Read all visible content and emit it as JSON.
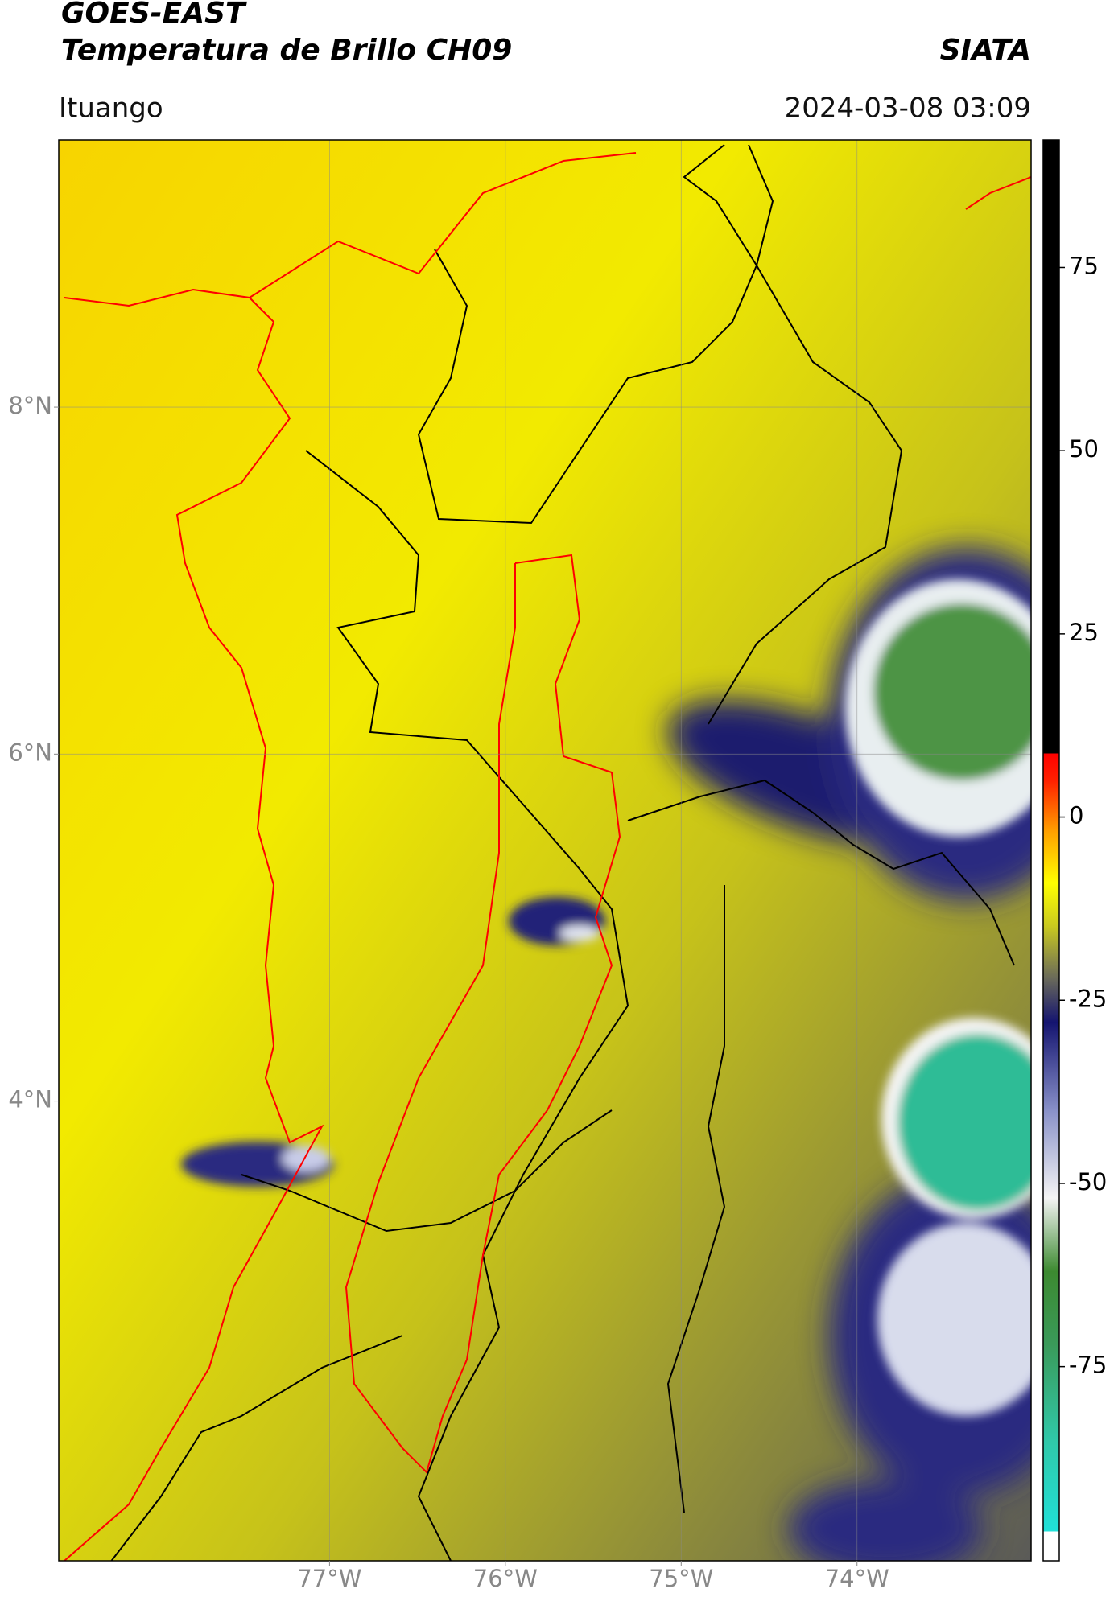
{
  "chart_data": {
    "type": "raster-map",
    "title": "GOES-EAST",
    "subtitle": "Temperatura de Brillo CH09",
    "source": "SIATA",
    "location": "Ituango",
    "datetime": "2024-03-08 03:09",
    "xlim": [
      -78.54,
      -73.01
    ],
    "xticks": [
      {
        "value": -77,
        "label": "77°W"
      },
      {
        "value": -76,
        "label": "76°W"
      },
      {
        "value": -75,
        "label": "75°W"
      },
      {
        "value": -74,
        "label": "74°W"
      }
    ],
    "ylim": [
      1.35,
      9.54
    ],
    "yticks": [
      {
        "value": 8,
        "label": "8°N"
      },
      {
        "value": 6,
        "label": "6°N"
      },
      {
        "value": 4,
        "label": "4°N"
      }
    ],
    "grid": true,
    "colorbar": {
      "lim": [
        -101.5,
        92.4
      ],
      "ticks": [
        75,
        50,
        25,
        0,
        -25,
        -50,
        -75
      ],
      "colormap": [
        {
          "value": -101.5,
          "color": "#ffffff"
        },
        {
          "value": -97.5,
          "color": "#ffffff"
        },
        {
          "value": -97.5,
          "color": "#20e0d8"
        },
        {
          "value": -85,
          "color": "#30c8a8"
        },
        {
          "value": -72,
          "color": "#3a9a5a"
        },
        {
          "value": -62,
          "color": "#3c8a30"
        },
        {
          "value": -52,
          "color": "#f4f4f4"
        },
        {
          "value": -40,
          "color": "#8890c8"
        },
        {
          "value": -28,
          "color": "#141470"
        },
        {
          "value": -22,
          "color": "#6a6a5a"
        },
        {
          "value": -15,
          "color": "#c8c820"
        },
        {
          "value": -9,
          "color": "#ffff00"
        },
        {
          "value": -2,
          "color": "#ffa000"
        },
        {
          "value": 5,
          "color": "#ff2000"
        },
        {
          "value": 8.7,
          "color": "#ff0000"
        },
        {
          "value": 8.7,
          "color": "#000000"
        },
        {
          "value": 92.4,
          "color": "#000000"
        }
      ]
    }
  }
}
